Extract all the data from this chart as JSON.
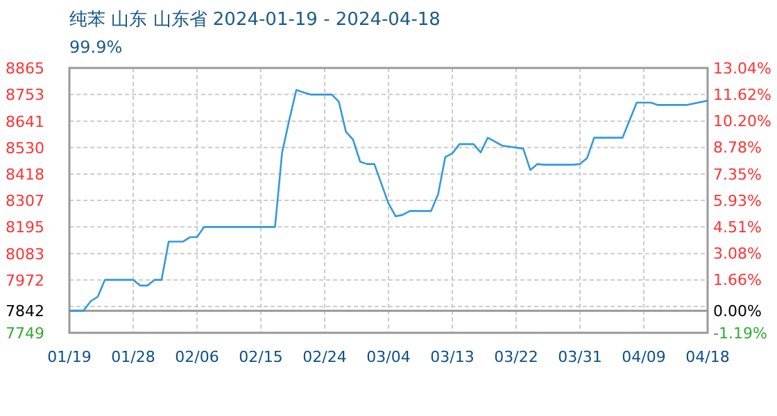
{
  "chart_data": {
    "type": "line",
    "title": "纯苯 山东 山东省 2024-01-19 - 2024-04-18",
    "subtitle": "99.9%",
    "x": [
      "2024-01-19",
      "2024-01-21",
      "2024-01-22",
      "2024-01-23",
      "2024-01-24",
      "2024-01-28",
      "2024-01-29",
      "2024-01-30",
      "2024-01-31",
      "2024-02-01",
      "2024-02-02",
      "2024-02-04",
      "2024-02-05",
      "2024-02-06",
      "2024-02-07",
      "2024-02-17",
      "2024-02-18",
      "2024-02-19",
      "2024-02-20",
      "2024-02-21",
      "2024-02-22",
      "2024-02-25",
      "2024-02-26",
      "2024-02-27",
      "2024-02-28",
      "2024-02-29",
      "2024-03-01",
      "2024-03-02",
      "2024-03-04",
      "2024-03-05",
      "2024-03-06",
      "2024-03-07",
      "2024-03-10",
      "2024-03-11",
      "2024-03-12",
      "2024-03-13",
      "2024-03-14",
      "2024-03-16",
      "2024-03-17",
      "2024-03-18",
      "2024-03-20",
      "2024-03-23",
      "2024-03-24",
      "2024-03-25",
      "2024-03-26",
      "2024-03-30",
      "2024-03-31",
      "2024-04-01",
      "2024-04-02",
      "2024-04-06",
      "2024-04-08",
      "2024-04-10",
      "2024-04-11",
      "2024-04-15",
      "2024-04-18"
    ],
    "series": [
      {
        "color": "#3399dd",
        "values": [
          7842,
          7842,
          7882,
          7901,
          7972,
          7972,
          7948,
          7948,
          7972,
          7972,
          8133,
          8133,
          8152,
          8152,
          8195,
          8195,
          8509,
          8645,
          8772,
          8762,
          8753,
          8753,
          8723,
          8596,
          8563,
          8470,
          8460,
          8460,
          8294,
          8240,
          8246,
          8262,
          8262,
          8333,
          8489,
          8505,
          8544,
          8544,
          8509,
          8571,
          8538,
          8525,
          8435,
          8460,
          8457,
          8457,
          8460,
          8485,
          8571,
          8571,
          8719,
          8719,
          8709,
          8709,
          8727
        ]
      }
    ],
    "xlim": [
      "2024-01-19",
      "2024-04-18"
    ],
    "xticks": [
      {
        "value": "2024-01-19",
        "label": "01/19"
      },
      {
        "value": "2024-01-28",
        "label": "01/28"
      },
      {
        "value": "2024-02-06",
        "label": "02/06"
      },
      {
        "value": "2024-02-15",
        "label": "02/15"
      },
      {
        "value": "2024-02-24",
        "label": "02/24"
      },
      {
        "value": "2024-03-04",
        "label": "03/04"
      },
      {
        "value": "2024-03-13",
        "label": "03/13"
      },
      {
        "value": "2024-03-22",
        "label": "03/22"
      },
      {
        "value": "2024-03-31",
        "label": "03/31"
      },
      {
        "value": "2024-04-09",
        "label": "04/09"
      },
      {
        "value": "2024-04-18",
        "label": "04/18"
      }
    ],
    "ylim": [
      7749,
      8865
    ],
    "yticks": [
      7749,
      7842,
      {
        "value": 7860,
        "label": null
      },
      7972,
      8083,
      8195,
      8307,
      8418,
      8530,
      8641,
      8753,
      8865
    ],
    "y2lim": [
      -1.19,
      13.04
    ],
    "y2ticks": [
      {
        "value": -1.19,
        "label": "-1.19%"
      },
      {
        "value": 0,
        "label": "0.00%"
      },
      {
        "value": 1.66,
        "label": "1.66%"
      },
      {
        "value": 3.08,
        "label": "3.08%"
      },
      {
        "value": 4.51,
        "label": "4.51%"
      },
      {
        "value": 5.93,
        "label": "5.93%"
      },
      {
        "value": 7.35,
        "label": "7.35%"
      },
      {
        "value": 8.78,
        "label": "8.78%"
      },
      {
        "value": 10.2,
        "label": "10.20%"
      },
      {
        "value": 11.62,
        "label": "11.62%"
      },
      {
        "value": 13.04,
        "label": "13.04%"
      }
    ],
    "ref_lines": [
      {
        "axis": "y",
        "value": 7842,
        "color": "#999999"
      }
    ],
    "grid": true,
    "marker": "none",
    "line_style": "solid"
  }
}
